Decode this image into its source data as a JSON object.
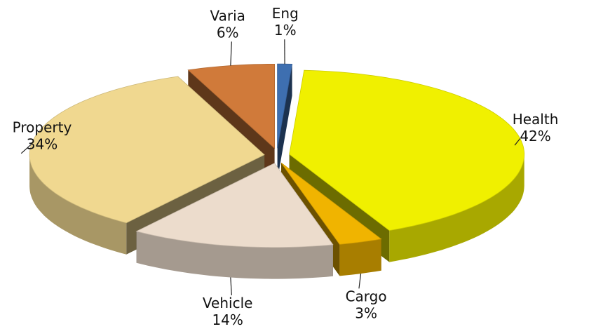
{
  "chart_data": {
    "type": "pie",
    "categories": [
      "Eng",
      "Health",
      "Cargo",
      "Vehicle",
      "Property",
      "Varia"
    ],
    "values": [
      1,
      42,
      3,
      14,
      34,
      6
    ],
    "value_labels": [
      "1%",
      "42%",
      "3%",
      "14%",
      "34%",
      "6%"
    ],
    "colors": [
      "#3e6fb0",
      "#f0f000",
      "#f0b400",
      "#ecdccc",
      "#f0d890",
      "#d07a3a"
    ]
  }
}
